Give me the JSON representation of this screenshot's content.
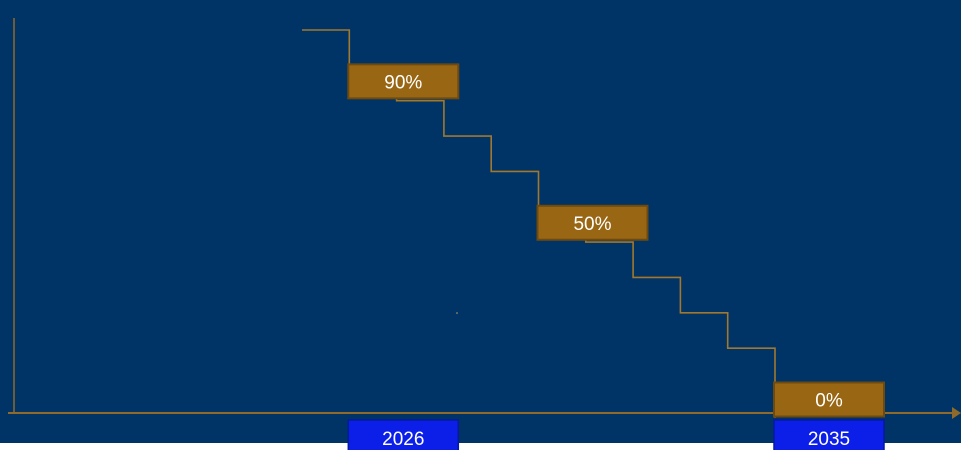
{
  "colors": {
    "background": "#003366",
    "step_line": "#a0782e",
    "axis": "#8f6a2a",
    "label_fill": "#996614",
    "label_border": "#6e4a0e",
    "label_text": "#ffffff",
    "year_fill": "#0b1fe8",
    "year_border": "#061a9e"
  },
  "chart_data": {
    "type": "line",
    "title": "",
    "xlabel": "",
    "ylabel": "",
    "x_tick_labels": [
      "2026",
      "2035"
    ],
    "xlim": [
      2025,
      2035
    ],
    "ylim": [
      0,
      100
    ],
    "grid": false,
    "series": [
      {
        "x": [
          2025,
          2026,
          2027,
          2028,
          2029,
          2030,
          2031,
          2032,
          2033,
          2034,
          2035
        ],
        "values": [
          100,
          90,
          80,
          70,
          60,
          50,
          40,
          30,
          20,
          10,
          0
        ]
      }
    ],
    "annotations": [
      {
        "x": 2026,
        "y": 90,
        "text": "90%"
      },
      {
        "x": 2030,
        "y": 50,
        "text": "50%"
      },
      {
        "x": 2035,
        "y": 0,
        "text": "0%"
      }
    ]
  }
}
